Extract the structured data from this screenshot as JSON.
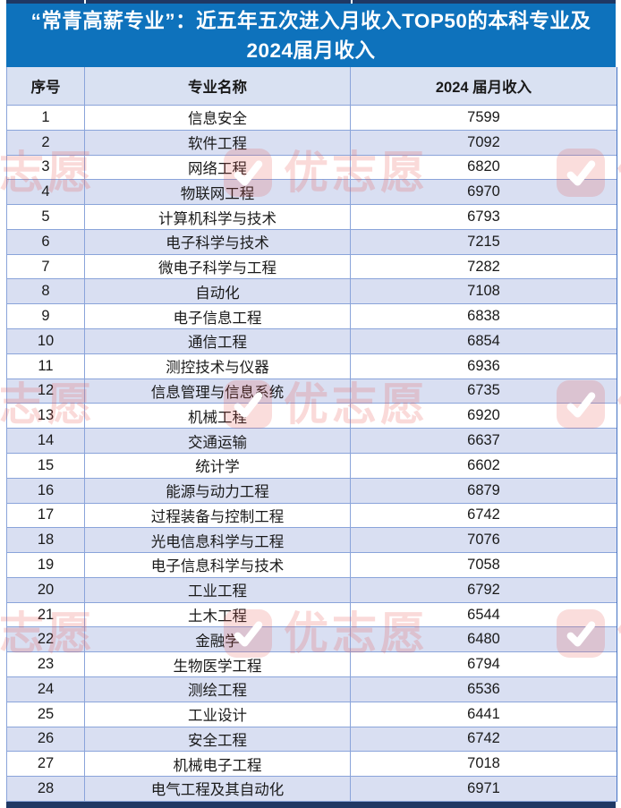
{
  "title_lines": {
    "line1": "“常青高薪专业”：近五年五次进入月收入TOP50的本科专业及",
    "line2": "2024届月收入"
  },
  "watermark": {
    "text": "优志愿",
    "logo_icon": "check-icon"
  },
  "colors": {
    "title_bg": "#0E72BC",
    "title_text": "#FFFFFF",
    "band_row_bg": "#D9DFF2",
    "header_bg": "#D9E1F2",
    "grid_line": "#8AA4DA",
    "frame_dark": "#1F3864",
    "watermark_red": "#E85550"
  },
  "chart_data": {
    "type": "table",
    "title": "“常青高薪专业”：近五年五次进入月收入TOP50的本科专业及2024届月收入",
    "columns": [
      "序号",
      "专业名称",
      "2024 届月收入"
    ],
    "rows": [
      [
        1,
        "信息安全",
        7599
      ],
      [
        2,
        "软件工程",
        7092
      ],
      [
        3,
        "网络工程",
        6820
      ],
      [
        4,
        "物联网工程",
        6970
      ],
      [
        5,
        "计算机科学与技术",
        6793
      ],
      [
        6,
        "电子科学与技术",
        7215
      ],
      [
        7,
        "微电子科学与工程",
        7282
      ],
      [
        8,
        "自动化",
        7108
      ],
      [
        9,
        "电子信息工程",
        6838
      ],
      [
        10,
        "通信工程",
        6854
      ],
      [
        11,
        "测控技术与仪器",
        6936
      ],
      [
        12,
        "信息管理与信息系统",
        6735
      ],
      [
        13,
        "机械工程",
        6920
      ],
      [
        14,
        "交通运输",
        6637
      ],
      [
        15,
        "统计学",
        6602
      ],
      [
        16,
        "能源与动力工程",
        6879
      ],
      [
        17,
        "过程装备与控制工程",
        6742
      ],
      [
        18,
        "光电信息科学与工程",
        7076
      ],
      [
        19,
        "电子信息科学与技术",
        7058
      ],
      [
        20,
        "工业工程",
        6792
      ],
      [
        21,
        "土木工程",
        6544
      ],
      [
        22,
        "金融学",
        6480
      ],
      [
        23,
        "生物医学工程",
        6794
      ],
      [
        24,
        "测绘工程",
        6536
      ],
      [
        25,
        "工业设计",
        6441
      ],
      [
        26,
        "安全工程",
        6742
      ],
      [
        27,
        "机械电子工程",
        7018
      ],
      [
        28,
        "电气工程及其自动化",
        6971
      ]
    ]
  }
}
